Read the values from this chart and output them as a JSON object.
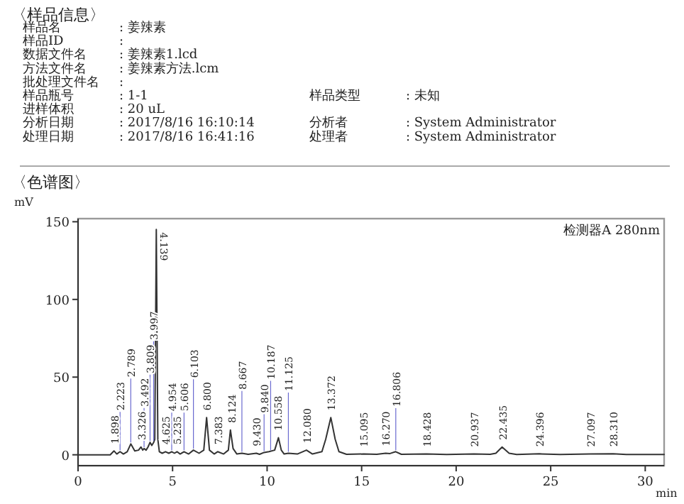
{
  "chart_data": {
    "type": "line",
    "title": "〈色谱图〉",
    "ylabel": "mV",
    "xlabel": "min",
    "xlim": [
      0,
      31
    ],
    "ylim": [
      -7,
      152
    ],
    "xticks": [
      0,
      5,
      10,
      15,
      20,
      25,
      30
    ],
    "yticks": [
      0,
      50,
      100,
      150
    ],
    "grid": false,
    "marker": "none",
    "line_style": "solid",
    "series": [
      {
        "color": "#333333",
        "x": [
          0,
          1.7,
          1.9,
          2.05,
          2.22,
          2.4,
          2.6,
          2.79,
          3.0,
          3.2,
          3.33,
          3.42,
          3.49,
          3.6,
          3.7,
          3.81,
          3.9,
          4.0,
          4.06,
          4.139,
          4.22,
          4.3,
          4.45,
          4.625,
          4.8,
          4.954,
          5.1,
          5.235,
          5.4,
          5.606,
          5.85,
          6.103,
          6.4,
          6.65,
          6.8,
          6.95,
          7.2,
          7.383,
          7.7,
          7.95,
          8.06,
          8.2,
          8.4,
          8.667,
          9.0,
          9.43,
          9.6,
          9.84,
          10.1,
          10.4,
          10.6,
          10.75,
          10.9,
          11.125,
          11.6,
          12.08,
          12.4,
          12.9,
          13.1,
          13.37,
          13.6,
          13.8,
          14.2,
          15.1,
          15.8,
          16.27,
          16.5,
          16.8,
          17.1,
          18.43,
          19.5,
          20.94,
          21.8,
          22.1,
          22.43,
          22.8,
          23.2,
          24.4,
          25.5,
          27.1,
          28.3,
          29,
          31
        ],
        "values": [
          0,
          0,
          2.5,
          0.5,
          2,
          0.5,
          2,
          7,
          2.5,
          3,
          5,
          3,
          4,
          3,
          5,
          8,
          6,
          8,
          10,
          145,
          10,
          2,
          1,
          2,
          1,
          2,
          1,
          2,
          0.5,
          2,
          0.5,
          3,
          1,
          3,
          24,
          3,
          0.5,
          2,
          0.5,
          3,
          16,
          4,
          0.5,
          1,
          0.3,
          1,
          0.3,
          1.5,
          2,
          3,
          11,
          3,
          0.5,
          1,
          0.5,
          3,
          0.5,
          2,
          10,
          24,
          10,
          2,
          0.3,
          0.5,
          0.3,
          1,
          0.8,
          2,
          0.3,
          0.5,
          0.2,
          0.5,
          0.3,
          1,
          5,
          1,
          0.2,
          0.6,
          0.2,
          0.5,
          0.7,
          0.2,
          0.2
        ]
      }
    ],
    "annotations": [
      "〈样品信息〉",
      "样品名 : 姜辣素",
      "样品ID :",
      "数据文件名 : 姜辣素1.lcd",
      "方法文件名 : 姜辣素方法.lcm",
      "批处理文件名 :",
      "样品瓶号 : 1-1",
      "进样体积 : 20 uL",
      "分析日期 : 2017/8/16 16:10:14",
      "处理日期 : 2017/8/16 16:41:16",
      "样品类型 : 未知",
      "分析者 : System Administrator",
      "处理者 : System Administrator",
      "检测器A 280nm",
      {
        "text": "1.898",
        "x": 1.898,
        "y": 2.5
      },
      {
        "text": "2.223",
        "x": 2.223,
        "y": 2
      },
      {
        "text": "2.789",
        "x": 2.789,
        "y": 7
      },
      {
        "text": "3.326",
        "x": 3.326,
        "y": 5
      },
      {
        "text": "3.492",
        "x": 3.492,
        "y": 4
      },
      {
        "text": "3.809",
        "x": 3.809,
        "y": 8
      },
      {
        "text": "3.997",
        "x": 3.997,
        "y": 8
      },
      {
        "text": "4.139",
        "x": 4.139,
        "y": 145
      },
      {
        "text": "4.625",
        "x": 4.625,
        "y": 2
      },
      {
        "text": "4.954",
        "x": 4.954,
        "y": 2
      },
      {
        "text": "5.235",
        "x": 5.235,
        "y": 2
      },
      {
        "text": "5.606",
        "x": 5.606,
        "y": 2
      },
      {
        "text": "6.103",
        "x": 6.103,
        "y": 3
      },
      {
        "text": "6.800",
        "x": 6.8,
        "y": 24
      },
      {
        "text": "7.383",
        "x": 7.383,
        "y": 2
      },
      {
        "text": "8.124",
        "x": 8.124,
        "y": 16
      },
      {
        "text": "8.667",
        "x": 8.667,
        "y": 1
      },
      {
        "text": "9.430",
        "x": 9.43,
        "y": 1
      },
      {
        "text": "9.840",
        "x": 9.84,
        "y": 1.5
      },
      {
        "text": "10.187",
        "x": 10.187,
        "y": 2
      },
      {
        "text": "10.558",
        "x": 10.558,
        "y": 11
      },
      {
        "text": "11.125",
        "x": 11.125,
        "y": 1
      },
      {
        "text": "12.080",
        "x": 12.08,
        "y": 3
      },
      {
        "text": "13.372",
        "x": 13.372,
        "y": 24
      },
      {
        "text": "15.095",
        "x": 15.095,
        "y": 0.5
      },
      {
        "text": "16.270",
        "x": 16.27,
        "y": 1
      },
      {
        "text": "16.806",
        "x": 16.806,
        "y": 2
      },
      {
        "text": "18.428",
        "x": 18.428,
        "y": 0.5
      },
      {
        "text": "20.937",
        "x": 20.937,
        "y": 0.5
      },
      {
        "text": "22.435",
        "x": 22.435,
        "y": 5
      },
      {
        "text": "24.396",
        "x": 24.396,
        "y": 0.6
      },
      {
        "text": "27.097",
        "x": 27.097,
        "y": 0.5
      },
      {
        "text": "28.310",
        "x": 28.31,
        "y": 0.7
      }
    ]
  }
}
